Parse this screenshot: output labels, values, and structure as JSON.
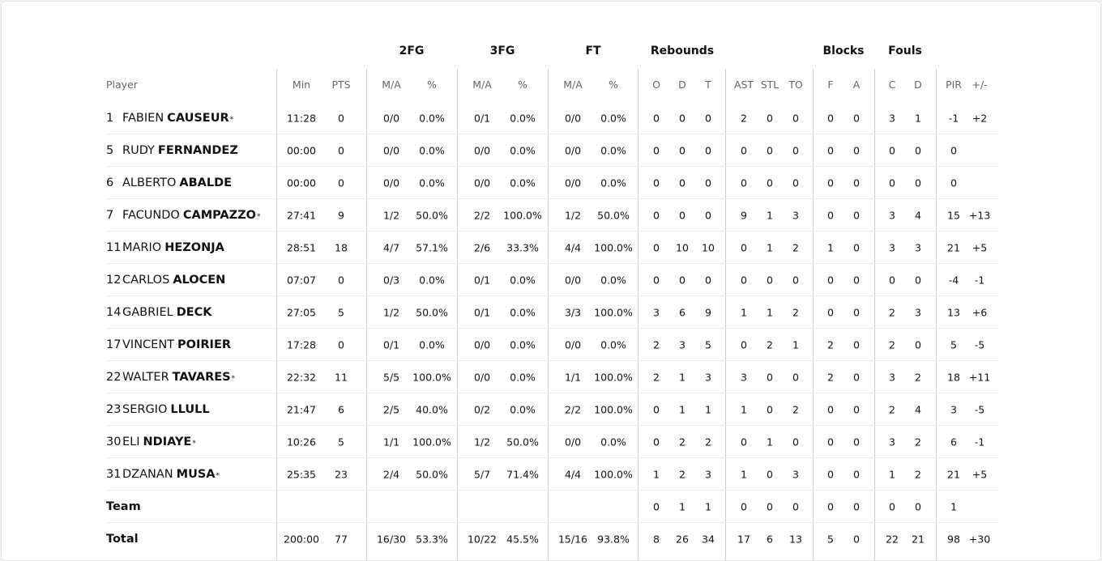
{
  "table": {
    "groups": [
      {
        "label": "2FG",
        "from": 2,
        "to": 3
      },
      {
        "label": "3FG",
        "from": 4,
        "to": 5
      },
      {
        "label": "FT",
        "from": 6,
        "to": 7
      },
      {
        "label": "Rebounds",
        "from": 8,
        "to": 10
      },
      {
        "label": "Blocks",
        "from": 14,
        "to": 15
      },
      {
        "label": "Fouls",
        "from": 16,
        "to": 17
      }
    ],
    "player_header": "Player",
    "columns": [
      "Min",
      "PTS",
      "M/A",
      "%",
      "M/A",
      "%",
      "M/A",
      "%",
      "O",
      "D",
      "T",
      "AST",
      "STL",
      "TO",
      "F",
      "A",
      "C",
      "D",
      "PIR",
      "+/-"
    ],
    "rows": [
      {
        "number": "1",
        "first": "FABIEN",
        "last": "CAUSEUR",
        "starter": "*",
        "cells": [
          "11:28",
          "0",
          "0/0",
          "0.0%",
          "0/1",
          "0.0%",
          "0/0",
          "0.0%",
          "0",
          "0",
          "0",
          "2",
          "0",
          "0",
          "0",
          "0",
          "3",
          "1",
          "-1",
          "+2"
        ]
      },
      {
        "number": "5",
        "first": "RUDY",
        "last": "FERNANDEZ",
        "cells": [
          "00:00",
          "0",
          "0/0",
          "0.0%",
          "0/0",
          "0.0%",
          "0/0",
          "0.0%",
          "0",
          "0",
          "0",
          "0",
          "0",
          "0",
          "0",
          "0",
          "0",
          "0",
          "0",
          null
        ]
      },
      {
        "number": "6",
        "first": "ALBERTO",
        "last": "ABALDE",
        "cells": [
          "00:00",
          "0",
          "0/0",
          "0.0%",
          "0/0",
          "0.0%",
          "0/0",
          "0.0%",
          "0",
          "0",
          "0",
          "0",
          "0",
          "0",
          "0",
          "0",
          "0",
          "0",
          "0",
          null
        ]
      },
      {
        "number": "7",
        "first": "FACUNDO",
        "last": "CAMPAZZO",
        "starter": "*",
        "cells": [
          "27:41",
          "9",
          "1/2",
          "50.0%",
          "2/2",
          "100.0%",
          "1/2",
          "50.0%",
          "0",
          "0",
          "0",
          "9",
          "1",
          "3",
          "0",
          "0",
          "3",
          "4",
          "15",
          "+13"
        ]
      },
      {
        "number": "11",
        "first": "MARIO",
        "last": "HEZONJA",
        "cells": [
          "28:51",
          "18",
          "4/7",
          "57.1%",
          "2/6",
          "33.3%",
          "4/4",
          "100.0%",
          "0",
          "10",
          "10",
          "0",
          "1",
          "2",
          "1",
          "0",
          "3",
          "3",
          "21",
          "+5"
        ]
      },
      {
        "number": "12",
        "first": "CARLOS",
        "last": "ALOCEN",
        "cells": [
          "07:07",
          "0",
          "0/3",
          "0.0%",
          "0/1",
          "0.0%",
          "0/0",
          "0.0%",
          "0",
          "0",
          "0",
          "0",
          "0",
          "0",
          "0",
          "0",
          "0",
          "0",
          "-4",
          "-1"
        ]
      },
      {
        "number": "14",
        "first": "GABRIEL",
        "last": "DECK",
        "cells": [
          "27:05",
          "5",
          "1/2",
          "50.0%",
          "0/1",
          "0.0%",
          "3/3",
          "100.0%",
          "3",
          "6",
          "9",
          "1",
          "1",
          "2",
          "0",
          "0",
          "2",
          "3",
          "13",
          "+6"
        ]
      },
      {
        "number": "17",
        "first": "VINCENT",
        "last": "POIRIER",
        "cells": [
          "17:28",
          "0",
          "0/1",
          "0.0%",
          "0/0",
          "0.0%",
          "0/0",
          "0.0%",
          "2",
          "3",
          "5",
          "0",
          "2",
          "1",
          "2",
          "0",
          "2",
          "0",
          "5",
          "-5"
        ]
      },
      {
        "number": "22",
        "first": "WALTER",
        "last": "TAVARES",
        "starter": "*",
        "cells": [
          "22:32",
          "11",
          "5/5",
          "100.0%",
          "0/0",
          "0.0%",
          "1/1",
          "100.0%",
          "2",
          "1",
          "3",
          "3",
          "0",
          "0",
          "2",
          "0",
          "3",
          "2",
          "18",
          "+11"
        ]
      },
      {
        "number": "23",
        "first": "SERGIO",
        "last": "LLULL",
        "cells": [
          "21:47",
          "6",
          "2/5",
          "40.0%",
          "0/2",
          "0.0%",
          "2/2",
          "100.0%",
          "0",
          "1",
          "1",
          "1",
          "0",
          "2",
          "0",
          "0",
          "2",
          "4",
          "3",
          "-5"
        ]
      },
      {
        "number": "30",
        "first": "ELI",
        "last": "NDIAYE",
        "starter": "*",
        "cells": [
          "10:26",
          "5",
          "1/1",
          "100.0%",
          "1/2",
          "50.0%",
          "0/0",
          "0.0%",
          "0",
          "2",
          "2",
          "0",
          "1",
          "0",
          "0",
          "0",
          "3",
          "2",
          "6",
          "-1"
        ]
      },
      {
        "number": "31",
        "first": "DZANAN",
        "last": "MUSA",
        "starter": "*",
        "cells": [
          "25:35",
          "23",
          "2/4",
          "50.0%",
          "5/7",
          "71.4%",
          "4/4",
          "100.0%",
          "1",
          "2",
          "3",
          "1",
          "0",
          "3",
          "0",
          "0",
          "1",
          "2",
          "21",
          "+5"
        ]
      },
      {
        "label": "Team",
        "cells": [
          null,
          null,
          null,
          null,
          null,
          null,
          null,
          null,
          "0",
          "1",
          "1",
          "0",
          "0",
          "0",
          "0",
          "0",
          "0",
          "0",
          "1",
          null
        ]
      },
      {
        "label": "Total",
        "cells": [
          "200:00",
          "77",
          "16/30",
          "53.3%",
          "10/22",
          "45.5%",
          "15/16",
          "93.8%",
          "8",
          "26",
          "34",
          "17",
          "6",
          "13",
          "5",
          "0",
          "22",
          "21",
          "98",
          "+30"
        ]
      }
    ]
  }
}
